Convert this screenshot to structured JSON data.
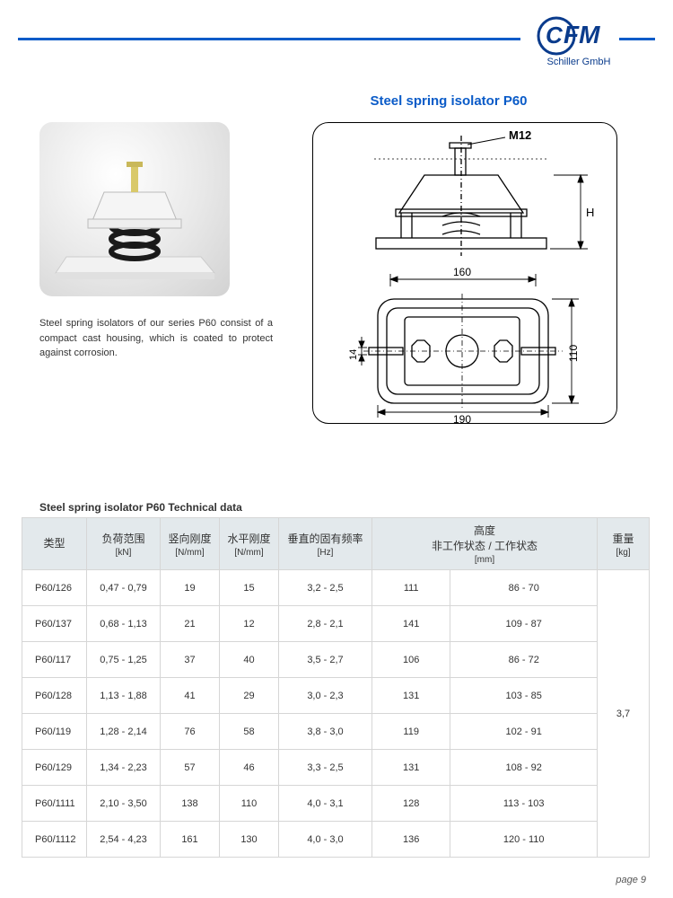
{
  "header": {
    "company": "Schiller GmbH",
    "logo_letters": "CFM",
    "rule_color": "#0a5bc8"
  },
  "title": "Steel spring isolator P60",
  "description": "Steel spring isolators of our series P60 consist of a compact cast housing, which is coated to protect against corrosion.",
  "diagram": {
    "thread_label": "M12",
    "dim_h": "H",
    "dim_160": "160",
    "dim_190": "190",
    "dim_110": "110",
    "dim_14": "14"
  },
  "table": {
    "title": "Steel spring isolator P60 Technical data",
    "columns": [
      {
        "main": "类型",
        "unit": "",
        "width": 72
      },
      {
        "main": "负荷范围",
        "unit": "[kN]",
        "width": 82
      },
      {
        "main": "竖向刚度",
        "unit": "[N/mm]",
        "width": 66
      },
      {
        "main": "水平刚度",
        "unit": "[N/mm]",
        "width": 66
      },
      {
        "main": "垂直的固有频率",
        "unit": "[Hz]",
        "width": 104
      },
      {
        "main": "高度\n非工作状态 / 工作状态",
        "unit": "[mm]",
        "width": 184,
        "span": 2
      },
      {
        "main": "重量",
        "unit": "[kg]",
        "width": 58
      }
    ],
    "rows": [
      [
        "P60/126",
        "0,47 - 0,79",
        "19",
        "15",
        "3,2 - 2,5",
        "111",
        "86 - 70"
      ],
      [
        "P60/137",
        "0,68 - 1,13",
        "21",
        "12",
        "2,8 - 2,1",
        "141",
        "109 - 87"
      ],
      [
        "P60/117",
        "0,75 - 1,25",
        "37",
        "40",
        "3,5 - 2,7",
        "106",
        "86 - 72"
      ],
      [
        "P60/128",
        "1,13 - 1,88",
        "41",
        "29",
        "3,0 - 2,3",
        "131",
        "103 - 85"
      ],
      [
        "P60/119",
        "1,28 - 2,14",
        "76",
        "58",
        "3,8 - 3,0",
        "119",
        "102 - 91"
      ],
      [
        "P60/129",
        "1,34 - 2,23",
        "57",
        "46",
        "3,3 - 2,5",
        "131",
        "108 - 92"
      ],
      [
        "P60/1111",
        "2,10 - 3,50",
        "138",
        "110",
        "4,0 - 3,1",
        "128",
        "113 - 103"
      ],
      [
        "P60/1112",
        "2,54 - 4,23",
        "161",
        "130",
        "4,0 - 3,0",
        "136",
        "120 - 110"
      ]
    ],
    "weight_merged": "3,7",
    "header_bg": "#e3e9ec",
    "border_color": "#d6d6d6"
  },
  "page_label": "page 9"
}
